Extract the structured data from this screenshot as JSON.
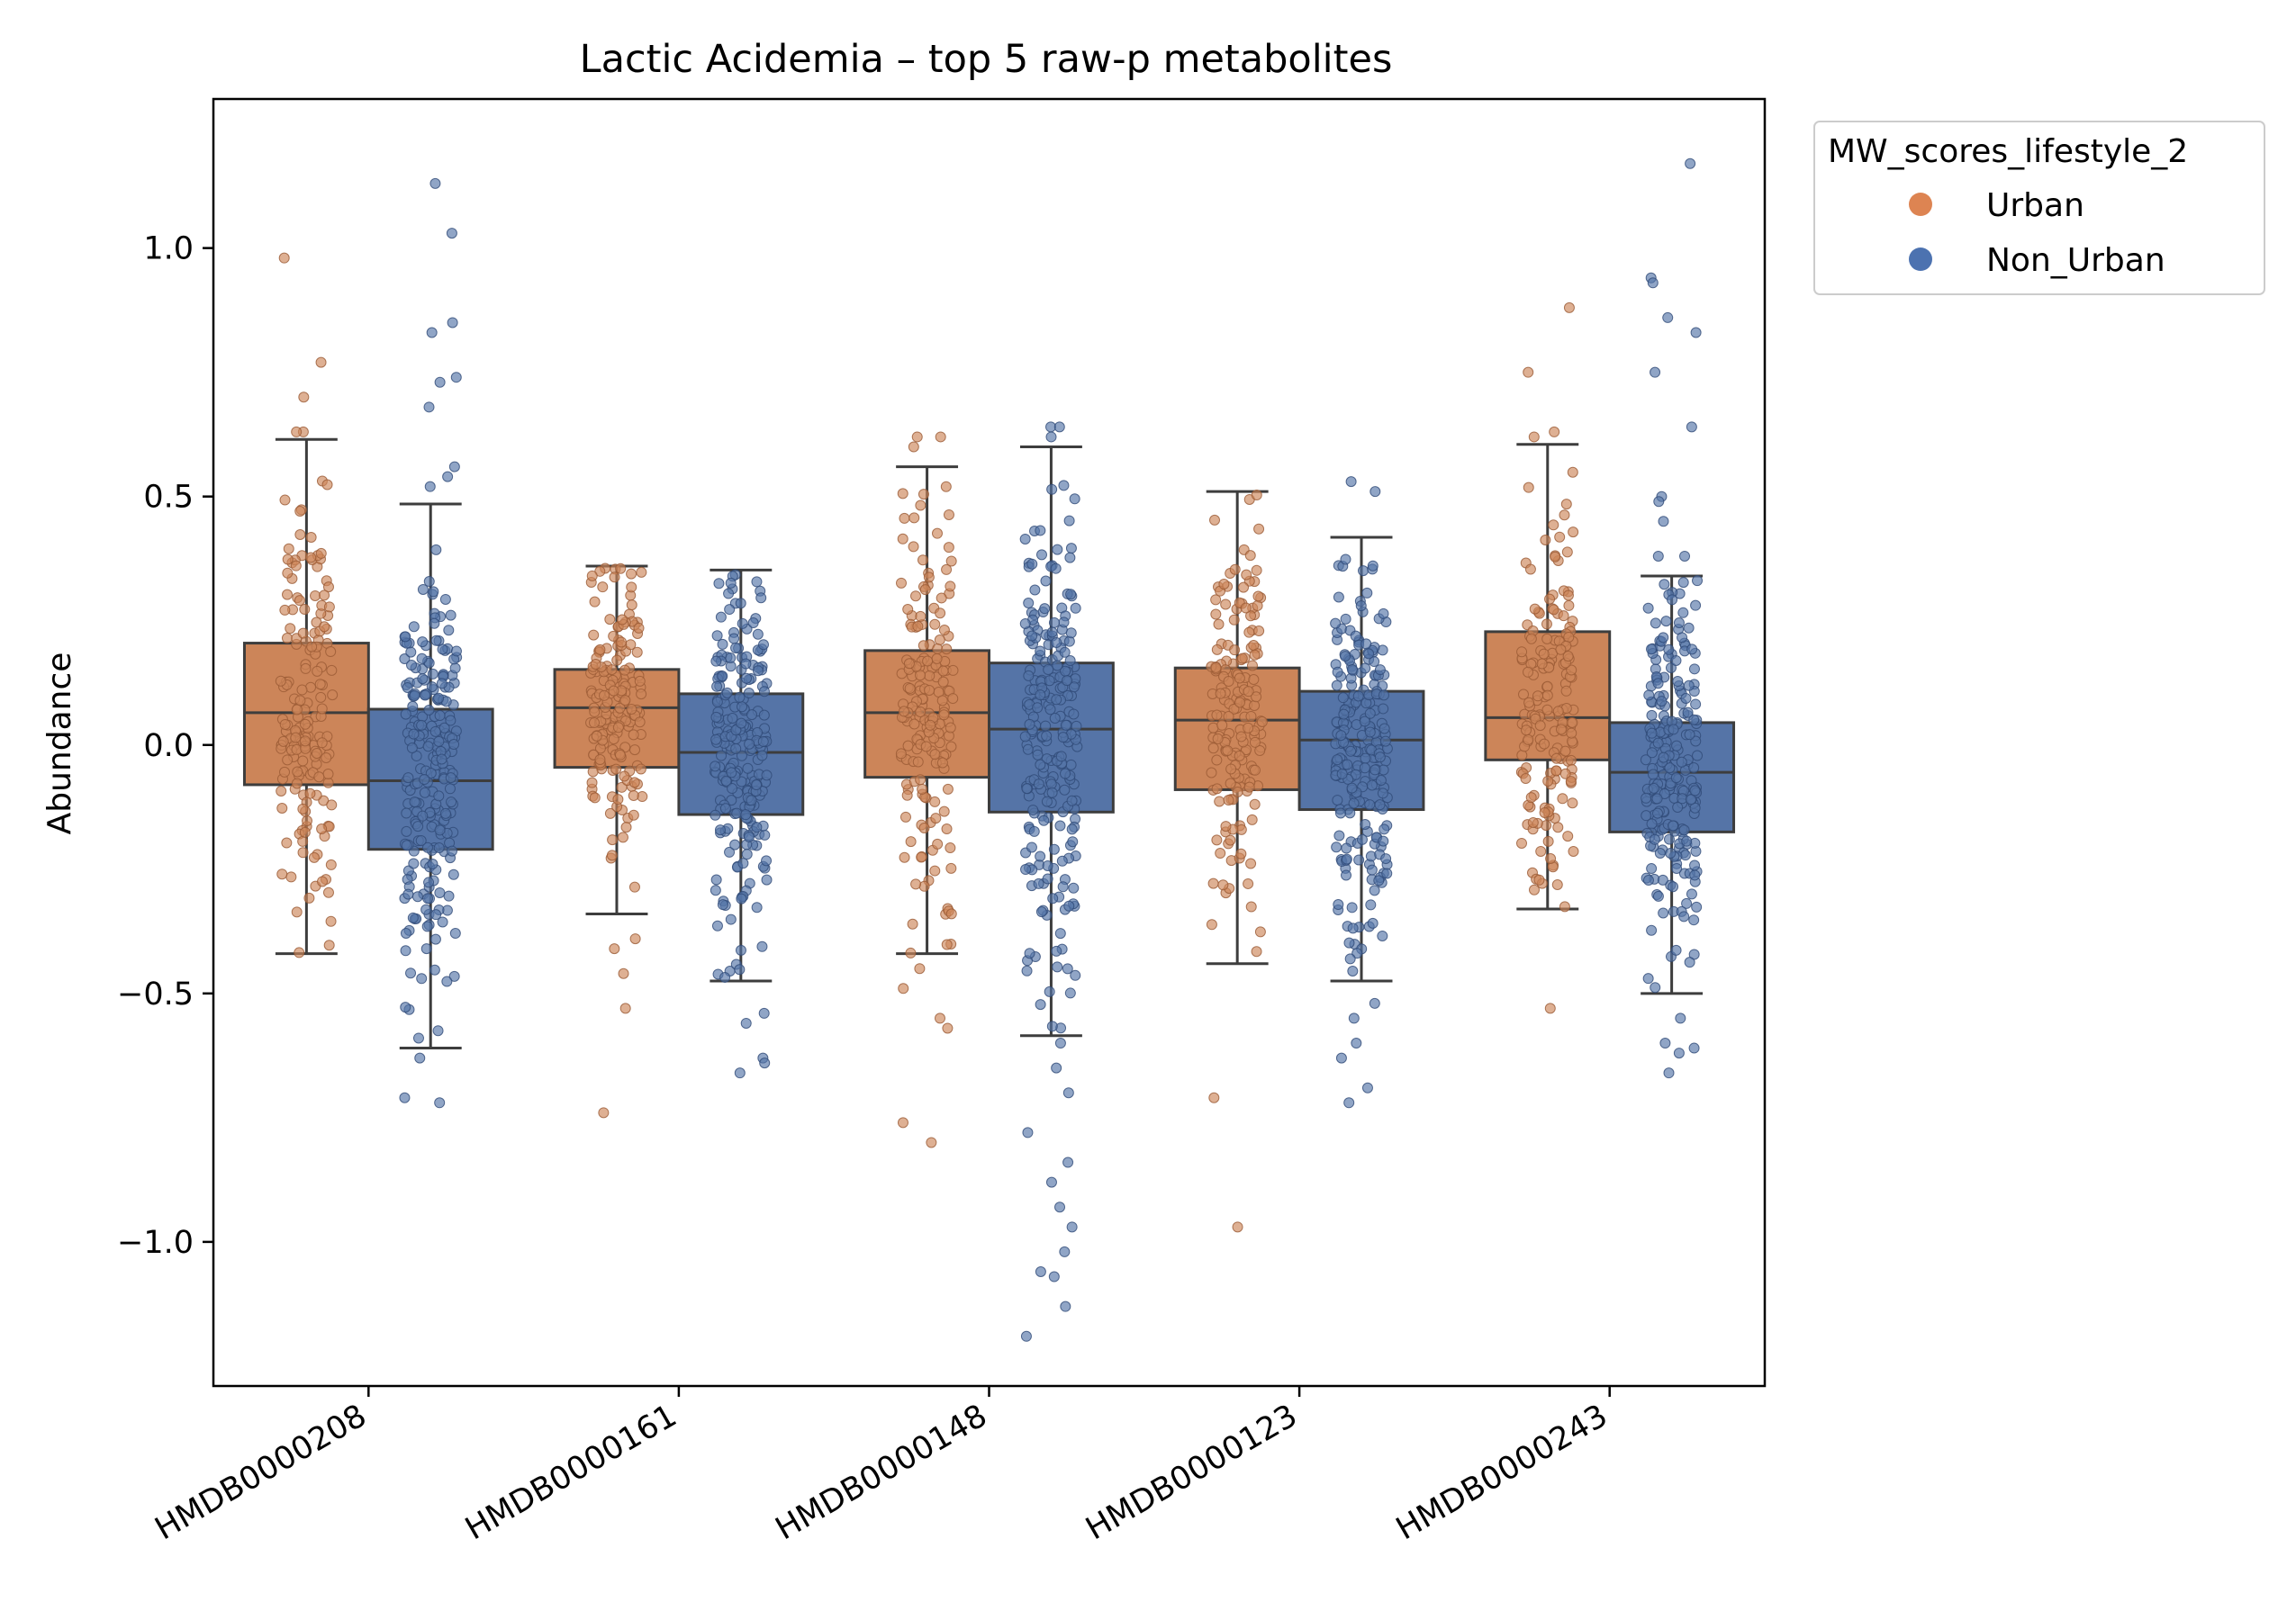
{
  "chart_data": {
    "type": "box",
    "title": "Lactic Acidemia  –  top 5 raw-p metabolites",
    "xlabel": "",
    "ylabel": "Abundance",
    "ylim": [
      -1.29,
      1.3
    ],
    "yticks": [
      -1.0,
      -0.5,
      0.0,
      0.5,
      1.0
    ],
    "ytick_labels": [
      "−1.0",
      "−0.5",
      "0.0",
      "0.5",
      "1.0"
    ],
    "categories": [
      "HMDB0000208",
      "HMDB0000161",
      "HMDB0000148",
      "HMDB0000123",
      "HMDB0000243"
    ],
    "legend": {
      "title": "MW_scores_lifestyle_2",
      "placement": "outside-upper-right",
      "entries": [
        "Urban",
        "Non_Urban"
      ]
    },
    "colors": {
      "Urban": "#cc8559",
      "Non_Urban": "#5574a7"
    },
    "series": [
      {
        "name": "Urban",
        "boxes": [
          {
            "category": "HMDB0000208",
            "whislo": -0.42,
            "q1": -0.08,
            "median": 0.065,
            "q3": 0.205,
            "whishi": 0.615,
            "outliers": [
              0.98,
              0.77,
              0.7,
              0.63,
              0.63
            ]
          },
          {
            "category": "HMDB0000161",
            "whislo": -0.34,
            "q1": -0.045,
            "median": 0.075,
            "q3": 0.152,
            "whishi": 0.36,
            "outliers": [
              -0.39,
              -0.41,
              -0.46,
              -0.53,
              -0.74
            ]
          },
          {
            "category": "HMDB0000148",
            "whislo": -0.42,
            "q1": -0.065,
            "median": 0.065,
            "q3": 0.19,
            "whishi": 0.56,
            "outliers": [
              0.62,
              0.6,
              0.62,
              -0.45,
              -0.49,
              -0.55,
              -0.57,
              -0.76,
              -0.8
            ]
          },
          {
            "category": "HMDB0000123",
            "whislo": -0.44,
            "q1": -0.09,
            "median": 0.05,
            "q3": 0.155,
            "whishi": 0.51,
            "outliers": [
              -0.71,
              -0.97
            ]
          },
          {
            "category": "HMDB0000243",
            "whislo": -0.33,
            "q1": -0.03,
            "median": 0.055,
            "q3": 0.228,
            "whishi": 0.605,
            "outliers": [
              0.88,
              0.75,
              0.63,
              0.62,
              -0.53
            ]
          }
        ]
      },
      {
        "name": "Non_Urban",
        "boxes": [
          {
            "category": "HMDB0000208",
            "whislo": -0.61,
            "q1": -0.21,
            "median": -0.072,
            "q3": 0.072,
            "whishi": 0.485,
            "outliers": [
              1.13,
              1.03,
              0.85,
              0.83,
              0.74,
              0.73,
              0.68,
              0.56,
              0.54,
              0.52,
              -0.63,
              -0.71,
              -0.72
            ]
          },
          {
            "category": "HMDB0000161",
            "whislo": -0.475,
            "q1": -0.14,
            "median": -0.015,
            "q3": 0.103,
            "whishi": 0.352,
            "outliers": [
              -0.54,
              -0.56,
              -0.63,
              -0.64,
              -0.66
            ]
          },
          {
            "category": "HMDB0000148",
            "whislo": -0.585,
            "q1": -0.135,
            "median": 0.032,
            "q3": 0.165,
            "whishi": 0.6,
            "outliers": [
              0.64,
              0.64,
              0.62,
              -0.6,
              -0.65,
              -0.7,
              -0.78,
              -0.84,
              -0.88,
              -0.93,
              -0.97,
              -1.02,
              -1.06,
              -1.07,
              -1.13,
              -1.19
            ]
          },
          {
            "category": "HMDB0000123",
            "whislo": -0.475,
            "q1": -0.13,
            "median": 0.01,
            "q3": 0.108,
            "whishi": 0.418,
            "outliers": [
              0.53,
              0.51,
              -0.52,
              -0.55,
              -0.6,
              -0.63,
              -0.69,
              -0.72
            ]
          },
          {
            "category": "HMDB0000243",
            "whislo": -0.5,
            "q1": -0.175,
            "median": -0.055,
            "q3": 0.045,
            "whishi": 0.34,
            "outliers": [
              1.17,
              0.94,
              0.93,
              0.86,
              0.83,
              0.75,
              0.64,
              0.5,
              0.49,
              0.45,
              0.38,
              0.38,
              -0.55,
              -0.6,
              -0.61,
              -0.62,
              -0.66
            ]
          }
        ]
      }
    ]
  }
}
